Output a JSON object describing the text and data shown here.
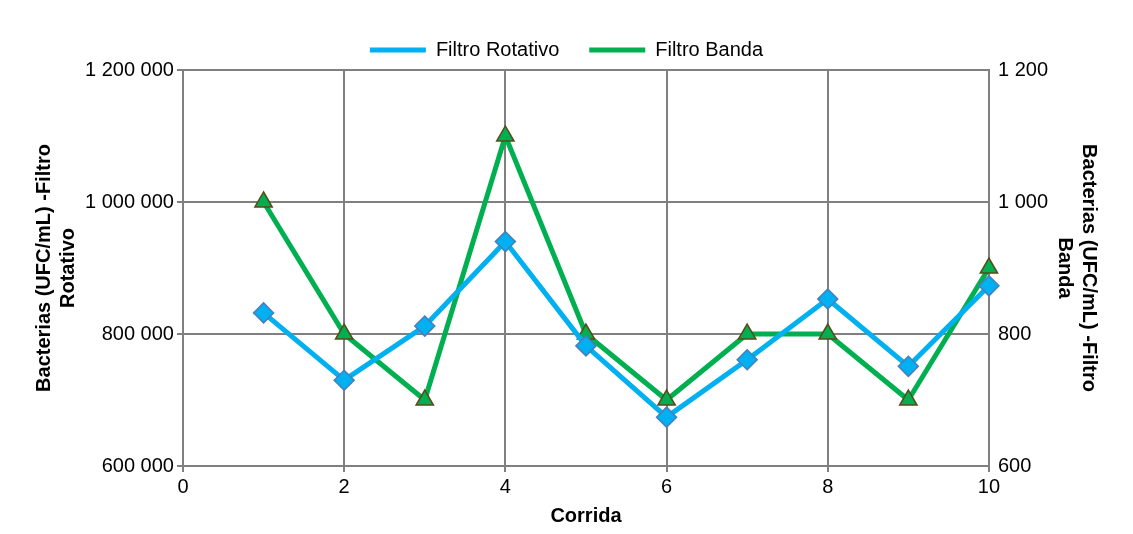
{
  "chart_data": {
    "type": "line",
    "xlabel": "Corrida",
    "ylabel": "Bacterias (UFC/mL) -Filtro Rotativo",
    "y2label": "Bacterias (UFC/mL) -Filtro Banda",
    "x": [
      1,
      2,
      3,
      4,
      5,
      6,
      7,
      8,
      9,
      10
    ],
    "series": [
      {
        "name": "Filtro Rotativo",
        "color": "#00b0f0",
        "marker": "diamond",
        "values": [
          832000,
          730000,
          812000,
          940000,
          782000,
          674000,
          761000,
          853000,
          751000,
          873000
        ]
      },
      {
        "name": "Filtro Banda",
        "color": "#00b050",
        "marker": "triangle",
        "axis": "y2",
        "values": [
          1000,
          800,
          700,
          1100,
          800,
          700,
          800,
          800,
          700,
          900
        ]
      }
    ],
    "xlim": [
      0,
      10
    ],
    "xticks": [
      0,
      2,
      4,
      6,
      8,
      10
    ],
    "ylim": [
      600000,
      1200000
    ],
    "yticks": [
      {
        "value": 600000,
        "label": "600 000"
      },
      {
        "value": 800000,
        "label": "800 000"
      },
      {
        "value": 1000000,
        "label": "1 000 000"
      },
      {
        "value": 1200000,
        "label": "1 200 000"
      }
    ],
    "y2lim": [
      600,
      1200
    ],
    "y2ticks": [
      600,
      800,
      {
        "value": 1000,
        "label": "1 000"
      },
      {
        "value": 1200,
        "label": "1 200"
      }
    ],
    "grid": true,
    "legend": "top",
    "line_style": "solid"
  }
}
